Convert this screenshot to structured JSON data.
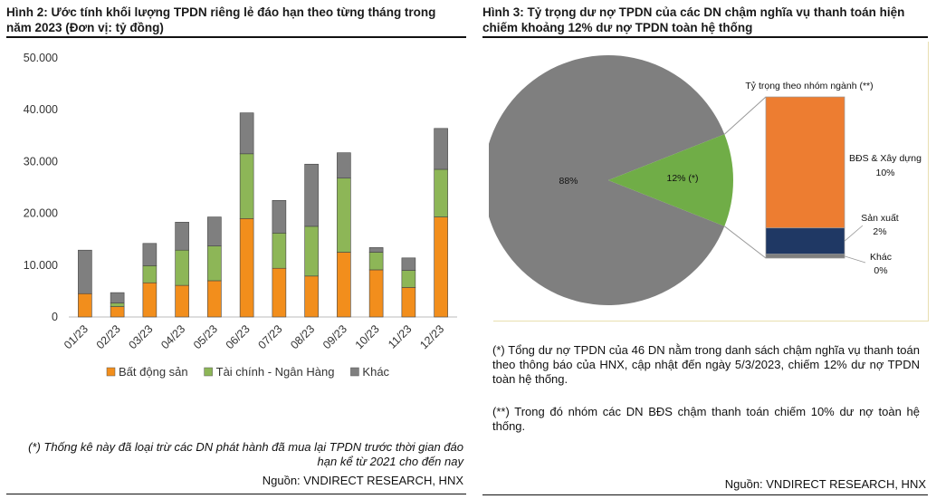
{
  "left": {
    "title": "Hình 2: Ước tính khối lượng TPDN riêng lẻ đáo hạn theo từng tháng trong năm 2023 (Đơn vị: tỷ đồng)",
    "note": "(*) Thống kê này đã loại trừ các DN phát hành đã mua lại TPDN trước thời gian đáo hạn kể từ 2021 cho đến nay",
    "source": "Nguồn: VNDIRECT RESEARCH, HNX"
  },
  "right": {
    "title": "Hình 3: Tỷ trọng dư nợ TPDN của các DN chậm nghĩa vụ thanh toán hiện chiếm khoảng 12% dư nợ TPDN toàn hệ thống",
    "note1": "(*) Tổng dư nợ TPDN của 46 DN nằm trong danh sách chậm nghĩa vụ thanh toán theo thông báo của HNX, cập nhật đến ngày 5/3/2023, chiếm 12% dư nợ TPDN toàn hệ thống.",
    "note2": "(**) Trong đó nhóm các DN BĐS chậm thanh toán chiếm 10% dư nợ toàn hệ thống.",
    "source": "Nguồn: VNDIRECT RESEARCH, HNX"
  },
  "chart_data": [
    {
      "type": "bar",
      "stacked": true,
      "categories": [
        "01/23",
        "02/23",
        "03/23",
        "04/23",
        "05/23",
        "06/23",
        "07/23",
        "08/23",
        "09/23",
        "10/23",
        "11/23",
        "12/23"
      ],
      "series": [
        {
          "name": "Bất động sản",
          "color": "#F28E1C",
          "values": [
            4500,
            2000,
            6600,
            6100,
            7000,
            19000,
            9400,
            7900,
            12500,
            9100,
            5700,
            19300
          ]
        },
        {
          "name": "Tài chính - Ngân Hàng",
          "color": "#8DB657",
          "values": [
            0,
            700,
            3300,
            6800,
            6700,
            12500,
            6800,
            9600,
            14300,
            3400,
            3300,
            9200
          ]
        },
        {
          "name": "Khác",
          "color": "#7F7F7F",
          "values": [
            8400,
            2000,
            4300,
            5400,
            5600,
            7900,
            6300,
            12000,
            4900,
            900,
            2400,
            7900
          ]
        }
      ],
      "yticks": [
        "0",
        "10.000",
        "20.000",
        "30.000",
        "40.000",
        "50.000"
      ],
      "ylim": [
        0,
        50000
      ],
      "legend_position": "bottom"
    },
    {
      "type": "pie",
      "slices": [
        {
          "label": "88%",
          "value": 88,
          "color": "#7F7F7F"
        },
        {
          "label": "12% (*)",
          "value": 12,
          "color": "#70AD47"
        }
      ],
      "breakdown": {
        "title": "Tỷ trọng theo nhóm ngành (**)",
        "segments": [
          {
            "name": "BĐS & Xây dựng",
            "label": "10%",
            "value": 10,
            "color": "#ED7D31"
          },
          {
            "name": "Sản xuất",
            "label": "2%",
            "value": 2,
            "color": "#1F3864"
          },
          {
            "name": "Khác",
            "label": "0%",
            "value": 0.3,
            "color": "#7F7F7F"
          }
        ]
      }
    }
  ]
}
